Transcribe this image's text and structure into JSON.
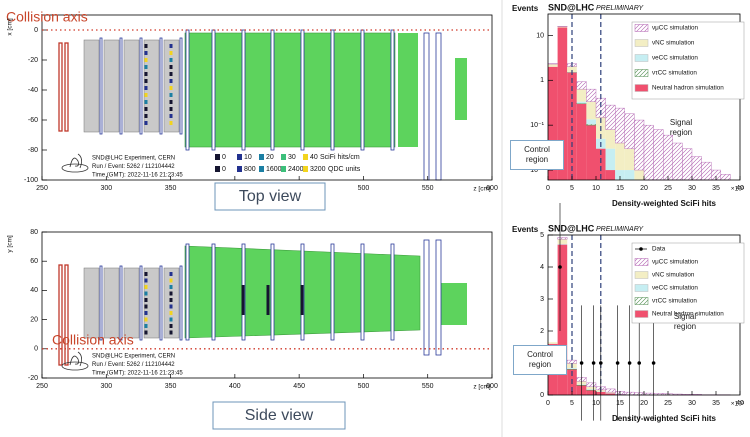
{
  "chart_data": [
    {
      "type": "event-display",
      "title": "Top view",
      "annotation": "Collision axis",
      "xlabel": "z [cm]",
      "ylabel": "x [cm]",
      "xlim": [
        250,
        600
      ],
      "xticks": [
        250,
        300,
        350,
        400,
        450,
        500,
        550,
        600
      ],
      "ylim": [
        -100,
        10
      ],
      "yticks": [
        0,
        -20,
        -40,
        -60,
        -80,
        -100
      ],
      "info": [
        "SND@LHC Experiment, CERN",
        "Run / Event: 5262 / 112104442",
        "Time (GMT): 2022-11-16 21:23:45"
      ],
      "scales": [
        {
          "ticks": [
            0,
            10,
            20,
            30,
            40
          ],
          "unit": "SciFi hits/cm",
          "colors": [
            "#151530",
            "#22318f",
            "#1b7fa3",
            "#3cbf7a",
            "#f2d41e"
          ]
        },
        {
          "ticks": [
            0,
            800,
            1600,
            2400,
            3200
          ],
          "unit": "QDC units",
          "colors": [
            "#151530",
            "#22318f",
            "#1b7fa3",
            "#3cbf7a",
            "#f2d41e"
          ]
        }
      ]
    },
    {
      "type": "event-display",
      "title": "Side view",
      "annotation": "Collision axis",
      "xlabel": "z [cm]",
      "ylabel": "y [cm]",
      "xlim": [
        250,
        600
      ],
      "xticks": [
        250,
        300,
        350,
        400,
        450,
        500,
        550,
        600
      ],
      "ylim": [
        -20,
        80
      ],
      "yticks": [
        -20,
        0,
        20,
        40,
        60,
        80
      ],
      "info": [
        "SND@LHC Experiment, CERN",
        "Run / Event: 5262 / 112104442",
        "Time (GMT): 2022-11-16 21:23:45"
      ]
    },
    {
      "type": "histogram",
      "title": "SND@LHC",
      "subtitle": "PRELIMINARY",
      "ylabel": "Events",
      "xlabel": "Density-weighted SciFi hits",
      "x_multiplier": "×10³",
      "log_y": true,
      "bins": [
        0,
        2,
        4,
        6,
        8,
        10,
        12,
        14,
        16,
        18,
        20,
        22,
        24,
        26,
        28,
        30,
        32,
        34,
        36,
        38,
        40
      ],
      "xlim": [
        0,
        40
      ],
      "xticks": [
        0,
        5,
        10,
        15,
        20,
        25,
        30,
        35,
        40
      ],
      "ylim": [
        0.006,
        30
      ],
      "yticks": [
        {
          "value": 0.01,
          "label": "10⁻²"
        },
        {
          "value": 0.1,
          "label": "10⁻¹"
        },
        1,
        10
      ],
      "cuts": [
        5,
        11
      ],
      "annotations": [
        "Signal region",
        "Control region"
      ],
      "series": [
        {
          "name": "νμCC simulation",
          "color": "#b05fb0",
          "hatch": true,
          "values": [
            0.05,
            0.2,
            0.3,
            0.3,
            0.3,
            0.25,
            0.2,
            0.2,
            0.15,
            0.12,
            0.1,
            0.08,
            0.06,
            0.04,
            0.03,
            0.02,
            0.015,
            0.01,
            0.008,
            0.005
          ]
        },
        {
          "name": "νNC simulation",
          "color": "#f3eec4",
          "hatch": false,
          "values": [
            0.3,
            0.8,
            0.5,
            0.3,
            0.2,
            0.1,
            0.05,
            0.03,
            0.02,
            0.01,
            0,
            0,
            0,
            0,
            0,
            0,
            0,
            0,
            0,
            0
          ]
        },
        {
          "name": "νeCC simulation",
          "color": "#c6eef2",
          "hatch": false,
          "values": [
            0,
            0.02,
            0.03,
            0.03,
            0.03,
            0.02,
            0.02,
            0.01,
            0.01,
            0,
            0,
            0,
            0,
            0,
            0,
            0,
            0,
            0,
            0,
            0
          ]
        },
        {
          "name": "ντCC simulation",
          "color": "#4c8a4c",
          "hatch": true,
          "values": [
            0,
            0,
            0.005,
            0.005,
            0.005,
            0,
            0,
            0,
            0,
            0,
            0,
            0,
            0,
            0,
            0,
            0,
            0,
            0,
            0,
            0
          ]
        },
        {
          "name": "Neutral hadron simulation",
          "color": "#f0506e",
          "hatch": false,
          "values": [
            2,
            15,
            1.5,
            0.3,
            0.1,
            0.03,
            0.01,
            0,
            0,
            0,
            0,
            0,
            0,
            0,
            0,
            0,
            0,
            0,
            0,
            0
          ]
        }
      ]
    },
    {
      "type": "histogram",
      "title": "SND@LHC",
      "subtitle": "PRELIMINARY",
      "ylabel": "Events",
      "xlabel": "Density-weighted SciFi hits",
      "x_multiplier": "×10³",
      "log_y": false,
      "bins": [
        0,
        2,
        4,
        6,
        8,
        10,
        12,
        14,
        16,
        18,
        20,
        22,
        24,
        26,
        28,
        30,
        32,
        34,
        36,
        38,
        40
      ],
      "xlim": [
        0,
        40
      ],
      "xticks": [
        0,
        5,
        10,
        15,
        20,
        25,
        30,
        35,
        40
      ],
      "ylim": [
        0,
        5
      ],
      "yticks": [
        0,
        1,
        2,
        3,
        4,
        5
      ],
      "cuts": [
        5,
        11
      ],
      "annotations": [
        "Signal region",
        "Control region"
      ],
      "series": [
        {
          "name": "Data",
          "color": "#000000",
          "x": [
            2.5,
            7,
            9.5,
            11,
            14.5,
            17,
            19,
            22
          ],
          "values": [
            4,
            1,
            1,
            1,
            1,
            1,
            1,
            1
          ],
          "errors": [
            2,
            1.8,
            1.8,
            1.8,
            1.8,
            1.8,
            1.8,
            1.8
          ]
        },
        {
          "name": "νμCC simulation",
          "color": "#b05fb0",
          "hatch": true,
          "values": [
            0,
            0.05,
            0.1,
            0.12,
            0.12,
            0.1,
            0.1,
            0.09,
            0.08,
            0.07,
            0.06,
            0.05,
            0.04,
            0.03,
            0.02,
            0.02,
            0.01,
            0.01,
            0.01,
            0
          ]
        },
        {
          "name": "νNC simulation",
          "color": "#f3eec4",
          "hatch": false,
          "values": [
            0.05,
            0.15,
            0.15,
            0.1,
            0.08,
            0.05,
            0.03,
            0.02,
            0.01,
            0,
            0,
            0,
            0,
            0,
            0,
            0,
            0,
            0,
            0,
            0
          ]
        },
        {
          "name": "νeCC simulation",
          "color": "#c6eef2",
          "hatch": false,
          "values": [
            0,
            0.02,
            0.03,
            0.02,
            0.02,
            0.01,
            0.01,
            0,
            0,
            0,
            0,
            0,
            0,
            0,
            0,
            0,
            0,
            0,
            0,
            0
          ]
        },
        {
          "name": "ντCC simulation",
          "color": "#4c8a4c",
          "hatch": true,
          "values": [
            0,
            0,
            0.01,
            0.01,
            0.01,
            0,
            0,
            0,
            0,
            0,
            0,
            0,
            0,
            0,
            0,
            0,
            0,
            0,
            0,
            0
          ]
        },
        {
          "name": "Neutral hadron simulation",
          "color": "#f0506e",
          "hatch": false,
          "values": [
            1.6,
            4.7,
            0.8,
            0.3,
            0.15,
            0.1,
            0.05,
            0,
            0,
            0,
            0,
            0,
            0,
            0,
            0,
            0,
            0,
            0,
            0,
            0
          ]
        }
      ]
    }
  ]
}
